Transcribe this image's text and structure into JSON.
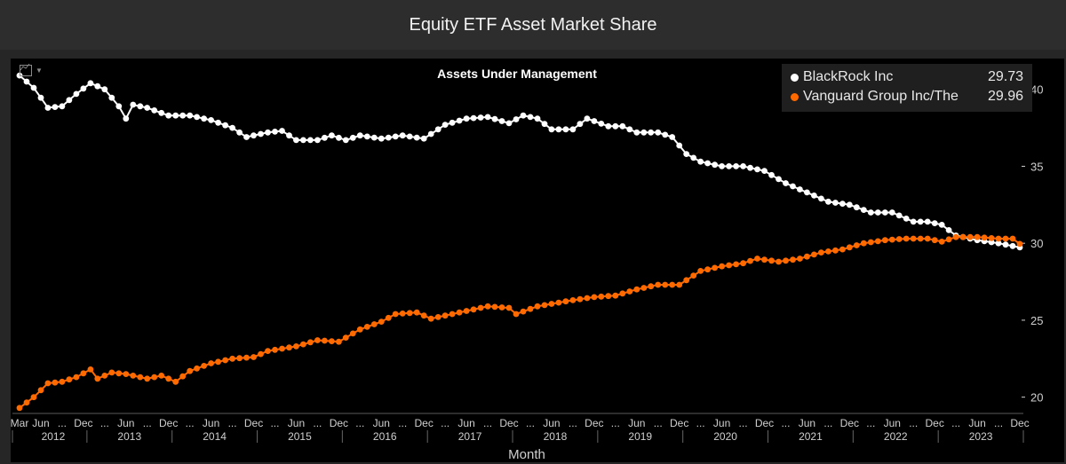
{
  "header": {
    "title": "Equity ETF Asset Market Share"
  },
  "colors": {
    "blackrock": "#ffffff",
    "vanguard": "#ff6a00",
    "axis": "#cfcfcf",
    "background": "#000000"
  },
  "icons": {
    "chart_tool": "line-chart-icon",
    "caret": "caret-down-icon"
  },
  "legend": [
    {
      "name": "BlackRock Inc",
      "value": "29.73"
    },
    {
      "name": "Vanguard Group Inc/The",
      "value": "29.96"
    }
  ],
  "chart_data": {
    "type": "line",
    "title": "Assets Under Management",
    "xlabel": "Month",
    "ylabel": "",
    "ylim": [
      19,
      42
    ],
    "yticks": [
      20,
      25,
      30,
      35,
      40
    ],
    "x_start": "2012-03",
    "x_end": "2023-12",
    "x_month_ticks": [
      {
        "date": "2012-03",
        "label": "Mar"
      },
      {
        "date": "2012-06",
        "label": "Jun"
      },
      {
        "date": "2012-12",
        "label": "Dec"
      },
      {
        "date": "2013-06",
        "label": "Jun"
      },
      {
        "date": "2013-12",
        "label": "Dec"
      },
      {
        "date": "2014-06",
        "label": "Jun"
      },
      {
        "date": "2014-12",
        "label": "Dec"
      },
      {
        "date": "2015-06",
        "label": "Jun"
      },
      {
        "date": "2015-12",
        "label": "Dec"
      },
      {
        "date": "2016-06",
        "label": "Jun"
      },
      {
        "date": "2016-12",
        "label": "Dec"
      },
      {
        "date": "2017-06",
        "label": "Jun"
      },
      {
        "date": "2017-12",
        "label": "Dec"
      },
      {
        "date": "2018-06",
        "label": "Jun"
      },
      {
        "date": "2018-12",
        "label": "Dec"
      },
      {
        "date": "2019-06",
        "label": "Jun"
      },
      {
        "date": "2019-12",
        "label": "Dec"
      },
      {
        "date": "2020-06",
        "label": "Jun"
      },
      {
        "date": "2020-12",
        "label": "Dec"
      },
      {
        "date": "2021-06",
        "label": "Jun"
      },
      {
        "date": "2021-12",
        "label": "Dec"
      },
      {
        "date": "2022-06",
        "label": "Jun"
      },
      {
        "date": "2022-12",
        "label": "Dec"
      },
      {
        "date": "2023-06",
        "label": "Jun"
      },
      {
        "date": "2023-12",
        "label": "Dec"
      }
    ],
    "x_year_labels": [
      "2012",
      "2013",
      "2014",
      "2015",
      "2016",
      "2017",
      "2018",
      "2019",
      "2020",
      "2021",
      "2022",
      "2023"
    ],
    "series": [
      {
        "name": "BlackRock Inc",
        "anchors": [
          [
            "2012-03",
            40.9
          ],
          [
            "2012-05",
            40.1
          ],
          [
            "2012-07",
            38.8
          ],
          [
            "2012-09",
            38.9
          ],
          [
            "2012-11",
            39.7
          ],
          [
            "2013-01",
            40.4
          ],
          [
            "2013-03",
            40.0
          ],
          [
            "2013-05",
            38.9
          ],
          [
            "2013-06",
            38.1
          ],
          [
            "2013-07",
            39.0
          ],
          [
            "2013-09",
            38.8
          ],
          [
            "2013-12",
            38.3
          ],
          [
            "2014-03",
            38.3
          ],
          [
            "2014-06",
            38.0
          ],
          [
            "2014-09",
            37.5
          ],
          [
            "2014-11",
            36.9
          ],
          [
            "2015-02",
            37.2
          ],
          [
            "2015-04",
            37.3
          ],
          [
            "2015-06",
            36.7
          ],
          [
            "2015-09",
            36.7
          ],
          [
            "2015-11",
            37.0
          ],
          [
            "2016-01",
            36.7
          ],
          [
            "2016-03",
            37.0
          ],
          [
            "2016-06",
            36.8
          ],
          [
            "2016-09",
            37.0
          ],
          [
            "2016-12",
            36.8
          ],
          [
            "2017-03",
            37.7
          ],
          [
            "2017-06",
            38.1
          ],
          [
            "2017-09",
            38.2
          ],
          [
            "2017-12",
            37.8
          ],
          [
            "2018-02",
            38.3
          ],
          [
            "2018-04",
            38.1
          ],
          [
            "2018-06",
            37.4
          ],
          [
            "2018-09",
            37.4
          ],
          [
            "2018-11",
            38.1
          ],
          [
            "2019-02",
            37.6
          ],
          [
            "2019-04",
            37.6
          ],
          [
            "2019-06",
            37.2
          ],
          [
            "2019-09",
            37.2
          ],
          [
            "2019-11",
            36.9
          ],
          [
            "2020-01",
            35.8
          ],
          [
            "2020-03",
            35.3
          ],
          [
            "2020-06",
            35.0
          ],
          [
            "2020-09",
            35.0
          ],
          [
            "2020-12",
            34.7
          ],
          [
            "2021-03",
            33.9
          ],
          [
            "2021-06",
            33.3
          ],
          [
            "2021-09",
            32.7
          ],
          [
            "2021-12",
            32.5
          ],
          [
            "2022-03",
            32.0
          ],
          [
            "2022-06",
            32.0
          ],
          [
            "2022-09",
            31.4
          ],
          [
            "2022-11",
            31.4
          ],
          [
            "2023-01",
            31.2
          ],
          [
            "2023-03",
            30.5
          ],
          [
            "2023-06",
            30.2
          ],
          [
            "2023-09",
            30.0
          ],
          [
            "2023-12",
            29.73
          ]
        ]
      },
      {
        "name": "Vanguard Group Inc/The",
        "anchors": [
          [
            "2012-03",
            19.3
          ],
          [
            "2012-05",
            20.0
          ],
          [
            "2012-07",
            20.9
          ],
          [
            "2012-09",
            21.0
          ],
          [
            "2012-11",
            21.3
          ],
          [
            "2013-01",
            21.8
          ],
          [
            "2013-02",
            21.2
          ],
          [
            "2013-04",
            21.6
          ],
          [
            "2013-06",
            21.5
          ],
          [
            "2013-09",
            21.2
          ],
          [
            "2013-11",
            21.4
          ],
          [
            "2014-01",
            21.0
          ],
          [
            "2014-03",
            21.7
          ],
          [
            "2014-06",
            22.2
          ],
          [
            "2014-09",
            22.5
          ],
          [
            "2014-12",
            22.6
          ],
          [
            "2015-02",
            23.0
          ],
          [
            "2015-06",
            23.3
          ],
          [
            "2015-09",
            23.7
          ],
          [
            "2015-12",
            23.6
          ],
          [
            "2016-03",
            24.4
          ],
          [
            "2016-06",
            24.9
          ],
          [
            "2016-08",
            25.4
          ],
          [
            "2016-11",
            25.5
          ],
          [
            "2017-01",
            25.1
          ],
          [
            "2017-05",
            25.5
          ],
          [
            "2017-09",
            25.9
          ],
          [
            "2017-12",
            25.8
          ],
          [
            "2018-01",
            25.4
          ],
          [
            "2018-04",
            25.9
          ],
          [
            "2018-09",
            26.3
          ],
          [
            "2018-12",
            26.5
          ],
          [
            "2019-03",
            26.6
          ],
          [
            "2019-06",
            27.0
          ],
          [
            "2019-09",
            27.3
          ],
          [
            "2019-12",
            27.3
          ],
          [
            "2020-03",
            28.2
          ],
          [
            "2020-06",
            28.5
          ],
          [
            "2020-09",
            28.7
          ],
          [
            "2020-11",
            29.0
          ],
          [
            "2021-02",
            28.8
          ],
          [
            "2021-05",
            29.0
          ],
          [
            "2021-08",
            29.4
          ],
          [
            "2021-11",
            29.6
          ],
          [
            "2022-02",
            30.0
          ],
          [
            "2022-05",
            30.2
          ],
          [
            "2022-08",
            30.3
          ],
          [
            "2022-11",
            30.3
          ],
          [
            "2023-01",
            30.1
          ],
          [
            "2023-03",
            30.4
          ],
          [
            "2023-06",
            30.4
          ],
          [
            "2023-09",
            30.3
          ],
          [
            "2023-11",
            30.3
          ],
          [
            "2023-12",
            29.96
          ]
        ]
      }
    ]
  }
}
